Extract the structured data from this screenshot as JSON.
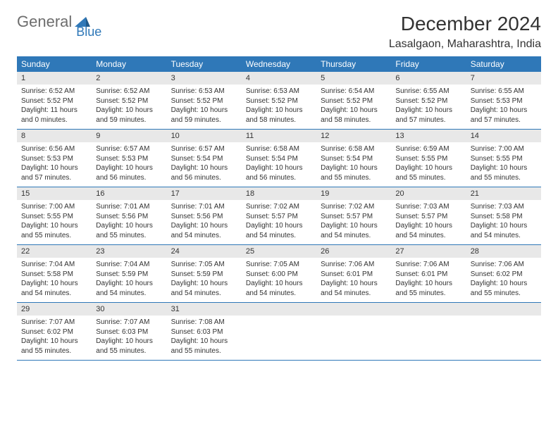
{
  "logo": {
    "text1": "General",
    "text2": "Blue"
  },
  "title": "December 2024",
  "location": "Lasalgaon, Maharashtra, India",
  "colors": {
    "header_bg": "#2f78b8",
    "header_text": "#ffffff",
    "daynum_bg": "#e8e8e8",
    "border": "#2f78b8",
    "text": "#333333",
    "logo_gray": "#6d6d6d",
    "logo_blue": "#2f78b8"
  },
  "typography": {
    "title_fontsize": 28,
    "location_fontsize": 16,
    "dayhead_fontsize": 12,
    "daynum_fontsize": 11,
    "dayinfo_fontsize": 10,
    "font_family": "Arial"
  },
  "day_headers": [
    "Sunday",
    "Monday",
    "Tuesday",
    "Wednesday",
    "Thursday",
    "Friday",
    "Saturday"
  ],
  "weeks": [
    [
      {
        "num": "1",
        "sunrise": "Sunrise: 6:52 AM",
        "sunset": "Sunset: 5:52 PM",
        "daylight": "Daylight: 11 hours and 0 minutes."
      },
      {
        "num": "2",
        "sunrise": "Sunrise: 6:52 AM",
        "sunset": "Sunset: 5:52 PM",
        "daylight": "Daylight: 10 hours and 59 minutes."
      },
      {
        "num": "3",
        "sunrise": "Sunrise: 6:53 AM",
        "sunset": "Sunset: 5:52 PM",
        "daylight": "Daylight: 10 hours and 59 minutes."
      },
      {
        "num": "4",
        "sunrise": "Sunrise: 6:53 AM",
        "sunset": "Sunset: 5:52 PM",
        "daylight": "Daylight: 10 hours and 58 minutes."
      },
      {
        "num": "5",
        "sunrise": "Sunrise: 6:54 AM",
        "sunset": "Sunset: 5:52 PM",
        "daylight": "Daylight: 10 hours and 58 minutes."
      },
      {
        "num": "6",
        "sunrise": "Sunrise: 6:55 AM",
        "sunset": "Sunset: 5:52 PM",
        "daylight": "Daylight: 10 hours and 57 minutes."
      },
      {
        "num": "7",
        "sunrise": "Sunrise: 6:55 AM",
        "sunset": "Sunset: 5:53 PM",
        "daylight": "Daylight: 10 hours and 57 minutes."
      }
    ],
    [
      {
        "num": "8",
        "sunrise": "Sunrise: 6:56 AM",
        "sunset": "Sunset: 5:53 PM",
        "daylight": "Daylight: 10 hours and 57 minutes."
      },
      {
        "num": "9",
        "sunrise": "Sunrise: 6:57 AM",
        "sunset": "Sunset: 5:53 PM",
        "daylight": "Daylight: 10 hours and 56 minutes."
      },
      {
        "num": "10",
        "sunrise": "Sunrise: 6:57 AM",
        "sunset": "Sunset: 5:54 PM",
        "daylight": "Daylight: 10 hours and 56 minutes."
      },
      {
        "num": "11",
        "sunrise": "Sunrise: 6:58 AM",
        "sunset": "Sunset: 5:54 PM",
        "daylight": "Daylight: 10 hours and 56 minutes."
      },
      {
        "num": "12",
        "sunrise": "Sunrise: 6:58 AM",
        "sunset": "Sunset: 5:54 PM",
        "daylight": "Daylight: 10 hours and 55 minutes."
      },
      {
        "num": "13",
        "sunrise": "Sunrise: 6:59 AM",
        "sunset": "Sunset: 5:55 PM",
        "daylight": "Daylight: 10 hours and 55 minutes."
      },
      {
        "num": "14",
        "sunrise": "Sunrise: 7:00 AM",
        "sunset": "Sunset: 5:55 PM",
        "daylight": "Daylight: 10 hours and 55 minutes."
      }
    ],
    [
      {
        "num": "15",
        "sunrise": "Sunrise: 7:00 AM",
        "sunset": "Sunset: 5:55 PM",
        "daylight": "Daylight: 10 hours and 55 minutes."
      },
      {
        "num": "16",
        "sunrise": "Sunrise: 7:01 AM",
        "sunset": "Sunset: 5:56 PM",
        "daylight": "Daylight: 10 hours and 55 minutes."
      },
      {
        "num": "17",
        "sunrise": "Sunrise: 7:01 AM",
        "sunset": "Sunset: 5:56 PM",
        "daylight": "Daylight: 10 hours and 54 minutes."
      },
      {
        "num": "18",
        "sunrise": "Sunrise: 7:02 AM",
        "sunset": "Sunset: 5:57 PM",
        "daylight": "Daylight: 10 hours and 54 minutes."
      },
      {
        "num": "19",
        "sunrise": "Sunrise: 7:02 AM",
        "sunset": "Sunset: 5:57 PM",
        "daylight": "Daylight: 10 hours and 54 minutes."
      },
      {
        "num": "20",
        "sunrise": "Sunrise: 7:03 AM",
        "sunset": "Sunset: 5:57 PM",
        "daylight": "Daylight: 10 hours and 54 minutes."
      },
      {
        "num": "21",
        "sunrise": "Sunrise: 7:03 AM",
        "sunset": "Sunset: 5:58 PM",
        "daylight": "Daylight: 10 hours and 54 minutes."
      }
    ],
    [
      {
        "num": "22",
        "sunrise": "Sunrise: 7:04 AM",
        "sunset": "Sunset: 5:58 PM",
        "daylight": "Daylight: 10 hours and 54 minutes."
      },
      {
        "num": "23",
        "sunrise": "Sunrise: 7:04 AM",
        "sunset": "Sunset: 5:59 PM",
        "daylight": "Daylight: 10 hours and 54 minutes."
      },
      {
        "num": "24",
        "sunrise": "Sunrise: 7:05 AM",
        "sunset": "Sunset: 5:59 PM",
        "daylight": "Daylight: 10 hours and 54 minutes."
      },
      {
        "num": "25",
        "sunrise": "Sunrise: 7:05 AM",
        "sunset": "Sunset: 6:00 PM",
        "daylight": "Daylight: 10 hours and 54 minutes."
      },
      {
        "num": "26",
        "sunrise": "Sunrise: 7:06 AM",
        "sunset": "Sunset: 6:01 PM",
        "daylight": "Daylight: 10 hours and 54 minutes."
      },
      {
        "num": "27",
        "sunrise": "Sunrise: 7:06 AM",
        "sunset": "Sunset: 6:01 PM",
        "daylight": "Daylight: 10 hours and 55 minutes."
      },
      {
        "num": "28",
        "sunrise": "Sunrise: 7:06 AM",
        "sunset": "Sunset: 6:02 PM",
        "daylight": "Daylight: 10 hours and 55 minutes."
      }
    ],
    [
      {
        "num": "29",
        "sunrise": "Sunrise: 7:07 AM",
        "sunset": "Sunset: 6:02 PM",
        "daylight": "Daylight: 10 hours and 55 minutes."
      },
      {
        "num": "30",
        "sunrise": "Sunrise: 7:07 AM",
        "sunset": "Sunset: 6:03 PM",
        "daylight": "Daylight: 10 hours and 55 minutes."
      },
      {
        "num": "31",
        "sunrise": "Sunrise: 7:08 AM",
        "sunset": "Sunset: 6:03 PM",
        "daylight": "Daylight: 10 hours and 55 minutes."
      },
      null,
      null,
      null,
      null
    ]
  ]
}
